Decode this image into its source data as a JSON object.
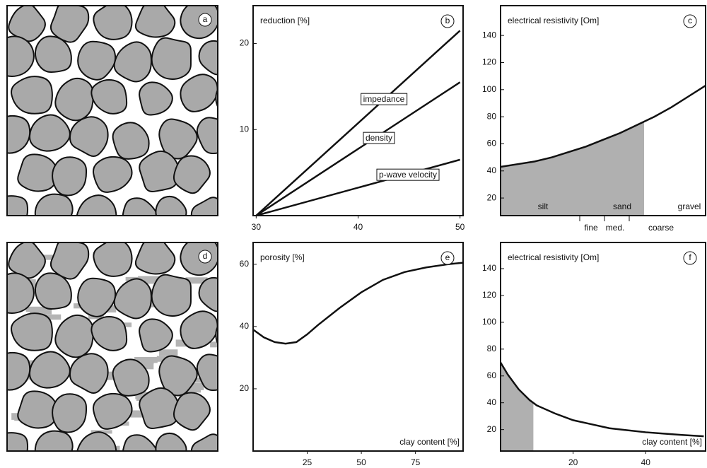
{
  "illustrations": [
    {
      "label": "a"
    },
    {
      "label": "d"
    }
  ],
  "chart_data": [
    {
      "type": "line",
      "label": "b",
      "title": "reduction [%]",
      "x": [
        30,
        50
      ],
      "xlim": [
        29.7,
        50.3
      ],
      "xticks": [
        30,
        40,
        50
      ],
      "ylim": [
        0,
        24.4
      ],
      "yticks": [
        10,
        20
      ],
      "series": [
        {
          "name": "impedance",
          "color": "#111111",
          "values": [
            0,
            21.5
          ]
        },
        {
          "name": "density",
          "color": "#111111",
          "values": [
            0,
            15.5
          ]
        },
        {
          "name": "p-wave velocity",
          "color": "#111111",
          "values": [
            0,
            6.5
          ]
        }
      ]
    },
    {
      "type": "line",
      "label": "c",
      "title": "electrical resistivity [Om]",
      "ylim": [
        7,
        162
      ],
      "yticks": [
        20,
        40,
        60,
        80,
        100,
        120,
        140
      ],
      "color": "#111111",
      "values": [
        43,
        45,
        47,
        50,
        54,
        58,
        63,
        68,
        74,
        80,
        87,
        95,
        103
      ],
      "annotations": [
        "silt",
        "sand",
        "gravel",
        "fine",
        "med.",
        "coarse"
      ]
    },
    {
      "type": "line",
      "label": "e",
      "title": "porosity [%]",
      "xlabel": "clay content [%]",
      "x": [
        0,
        5,
        10,
        15,
        20,
        25,
        30,
        40,
        50,
        60,
        70,
        80,
        90,
        97
      ],
      "xlim": [
        0,
        97
      ],
      "xticks": [
        25,
        50,
        75
      ],
      "ylim": [
        0,
        67
      ],
      "yticks": [
        20,
        40,
        60
      ],
      "color": "#111111",
      "values": [
        39,
        36.5,
        35,
        34.5,
        35,
        37.5,
        40.5,
        46,
        51,
        55,
        57.5,
        59,
        60,
        60.5
      ]
    },
    {
      "type": "line",
      "label": "f",
      "title": "electrical resistivity [Om]",
      "xlabel": "clay content [%]",
      "x": [
        0,
        2,
        5,
        8,
        10,
        15,
        20,
        25,
        30,
        35,
        40,
        45,
        50,
        56
      ],
      "xlim": [
        0,
        56.5
      ],
      "xticks": [
        20,
        40
      ],
      "ylim": [
        4,
        159.5
      ],
      "yticks": [
        20,
        40,
        60,
        80,
        100,
        120,
        140
      ],
      "color": "#111111",
      "values": [
        70,
        61,
        50,
        42,
        38,
        32,
        27,
        24,
        21,
        19.5,
        18,
        17,
        16,
        15
      ]
    }
  ]
}
